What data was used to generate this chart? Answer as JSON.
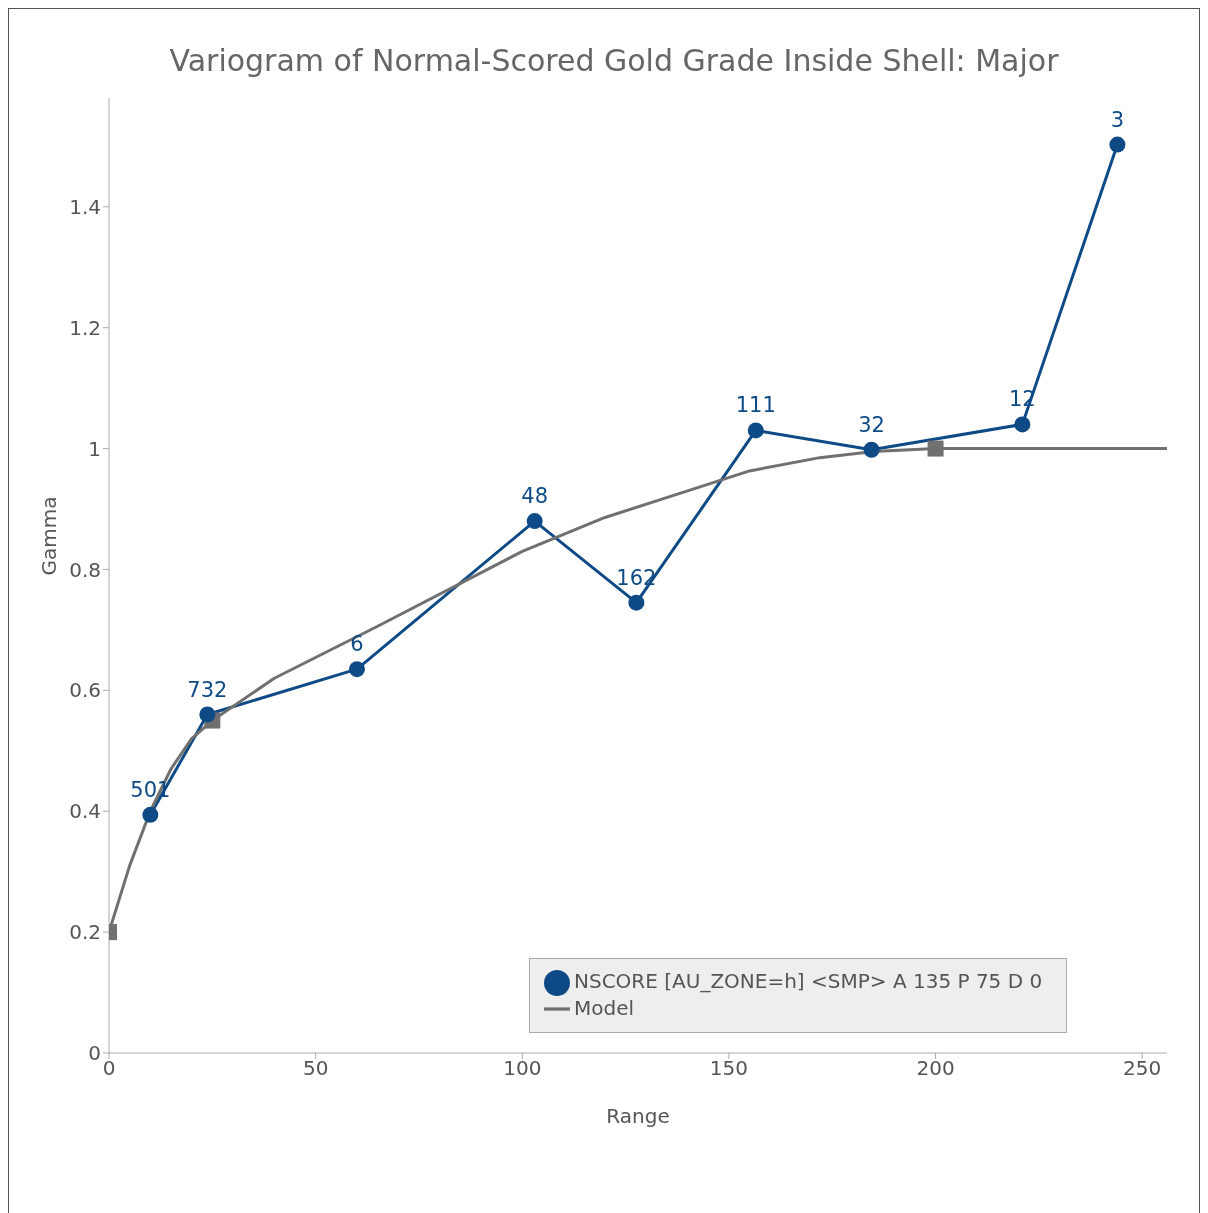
{
  "chart_data": {
    "type": "line",
    "title": "Variogram of Normal-Scored Gold Grade Inside Shell: Major",
    "xlabel": "Range",
    "ylabel": "Gamma",
    "xlim": [
      0,
      256
    ],
    "xticks": [
      0,
      50,
      100,
      150,
      200,
      250
    ],
    "ylim": [
      0,
      1.58
    ],
    "yticks": [
      0,
      0.2,
      0.4,
      0.6,
      0.8,
      1,
      1.2,
      1.4
    ],
    "grid": false,
    "legend": "bottom right",
    "line_style": "solid",
    "series": [
      {
        "name": "NSCORE [AU_ZONE=h] <SMP> A 135 P 75 D 0",
        "type": "line",
        "marker": "circle",
        "color": "#0e4a86",
        "x": [
          10,
          23.8,
          60,
          103,
          127.6,
          156.5,
          184.5,
          221,
          244
        ],
        "values": [
          0.394,
          0.56,
          0.635,
          0.88,
          0.745,
          1.03,
          0.998,
          1.04,
          1.503
        ]
      },
      {
        "name": "Model",
        "type": "line",
        "marker": "none",
        "color": "#707070",
        "x": [
          0,
          5,
          10,
          15,
          20,
          25,
          40,
          65,
          100,
          120,
          140,
          155,
          172,
          185,
          200,
          256
        ],
        "values": [
          0.2,
          0.31,
          0.4,
          0.47,
          0.52,
          0.55,
          0.62,
          0.706,
          0.83,
          0.886,
          0.93,
          0.963,
          0.985,
          0.995,
          1.0,
          1.0
        ]
      },
      {
        "type": "scatter",
        "marker": "square",
        "color": "#707070",
        "x": [
          0,
          25,
          200
        ],
        "values": [
          0.2,
          0.55,
          1.0
        ]
      }
    ],
    "annotations": [
      {
        "text": "501",
        "x": 10,
        "y": 0.394
      },
      {
        "text": "732",
        "x": 23.8,
        "y": 0.56
      },
      {
        "text": "6",
        "x": 60,
        "y": 0.635
      },
      {
        "text": "48",
        "x": 103,
        "y": 0.88
      },
      {
        "text": "162",
        "x": 127.6,
        "y": 0.745
      },
      {
        "text": "111",
        "x": 156.5,
        "y": 1.03
      },
      {
        "text": "32",
        "x": 184.5,
        "y": 0.998
      },
      {
        "text": "12",
        "x": 221,
        "y": 1.04
      },
      {
        "text": "3",
        "x": 244,
        "y": 1.503
      }
    ]
  }
}
